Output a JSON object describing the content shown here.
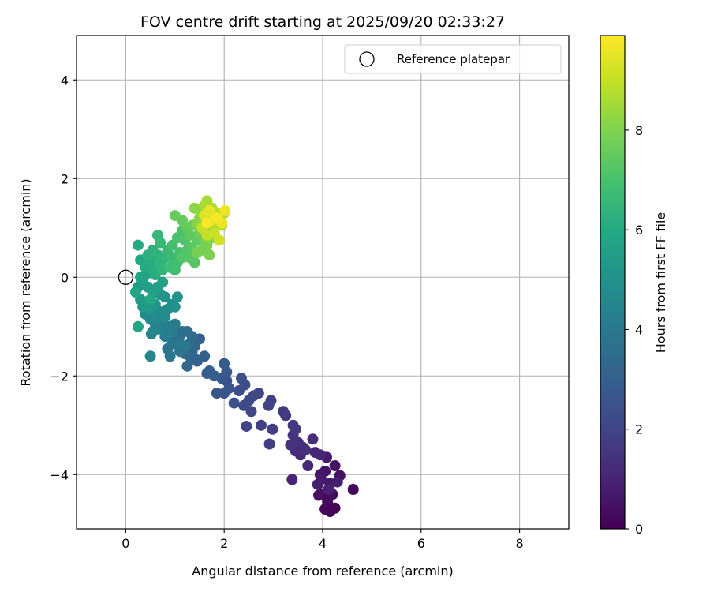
{
  "chart_data": {
    "type": "scatter",
    "title": "FOV centre drift starting at 2025/09/20 02:33:27",
    "xlabel": "Angular distance from reference (arcmin)",
    "ylabel": "Rotation from reference (arcmin)",
    "xlim": [
      -1,
      9
    ],
    "ylim": [
      -5.1,
      4.9
    ],
    "xticks": [
      0,
      2,
      4,
      6,
      8
    ],
    "xtick_labels": [
      "0",
      "2",
      "4",
      "6",
      "8"
    ],
    "yticks": [
      -4,
      -2,
      0,
      2,
      4
    ],
    "ytick_labels": [
      "−4",
      "−2",
      "0",
      "2",
      "4"
    ],
    "grid": true,
    "legend": {
      "position": "top-right",
      "entries": [
        {
          "label": "Reference platepar",
          "marker": "open-circle"
        }
      ]
    },
    "reference_point": {
      "x": 0,
      "y": 0
    },
    "colorbar": {
      "label": "Hours from first FF file",
      "range": [
        0,
        9.9
      ],
      "ticks": [
        0,
        2,
        4,
        6,
        8
      ],
      "tick_labels": [
        "0",
        "2",
        "4",
        "6",
        "8"
      ],
      "colormap": "viridis"
    },
    "points": [
      [
        4.15,
        -4.75,
        0.05
      ],
      [
        4.25,
        -4.68,
        0.1
      ],
      [
        4.05,
        -4.7,
        0.15
      ],
      [
        4.62,
        -4.3,
        0.2
      ],
      [
        4.1,
        -4.55,
        0.25
      ],
      [
        4.0,
        -4.4,
        0.3
      ],
      [
        4.2,
        -4.4,
        0.35
      ],
      [
        3.92,
        -4.42,
        0.4
      ],
      [
        4.35,
        -4.02,
        0.45
      ],
      [
        4.25,
        -3.82,
        0.5
      ],
      [
        4.05,
        -3.93,
        0.55
      ],
      [
        3.95,
        -4.0,
        0.6
      ],
      [
        4.15,
        -4.18,
        0.65
      ],
      [
        3.97,
        -4.1,
        0.7
      ],
      [
        4.08,
        -3.65,
        0.75
      ],
      [
        3.9,
        -4.2,
        0.8
      ],
      [
        4.3,
        -4.15,
        0.85
      ],
      [
        4.12,
        -4.3,
        0.9
      ],
      [
        3.38,
        -4.1,
        0.95
      ],
      [
        3.85,
        -3.55,
        1.0
      ],
      [
        3.7,
        -3.82,
        1.05
      ],
      [
        3.95,
        -3.6,
        1.1
      ],
      [
        3.55,
        -3.6,
        1.15
      ],
      [
        3.6,
        -3.45,
        1.2
      ],
      [
        3.45,
        -3.52,
        1.25
      ],
      [
        3.8,
        -3.28,
        1.3
      ],
      [
        3.5,
        -3.35,
        1.35
      ],
      [
        3.65,
        -3.5,
        1.4
      ],
      [
        3.35,
        -3.4,
        1.45
      ],
      [
        3.4,
        -3.2,
        1.5
      ],
      [
        3.45,
        -3.08,
        1.55
      ],
      [
        3.4,
        -3.0,
        1.6
      ],
      [
        3.25,
        -2.8,
        1.65
      ],
      [
        3.2,
        -2.72,
        1.7
      ],
      [
        2.98,
        -3.08,
        1.75
      ],
      [
        2.92,
        -3.38,
        1.8
      ],
      [
        2.75,
        -3.0,
        1.85
      ],
      [
        2.95,
        -2.5,
        1.9
      ],
      [
        2.9,
        -2.6,
        1.95
      ],
      [
        2.45,
        -3.02,
        2.0
      ],
      [
        2.55,
        -2.72,
        2.05
      ],
      [
        2.7,
        -2.35,
        2.1
      ],
      [
        2.6,
        -2.4,
        2.15
      ],
      [
        2.5,
        -2.5,
        2.2
      ],
      [
        2.4,
        -2.6,
        2.25
      ],
      [
        2.3,
        -2.3,
        2.3
      ],
      [
        2.42,
        -2.18,
        2.35
      ],
      [
        2.35,
        -2.05,
        2.4
      ],
      [
        2.2,
        -2.55,
        2.45
      ],
      [
        2.1,
        -2.25,
        2.5
      ],
      [
        2.05,
        -2.1,
        2.55
      ],
      [
        2.0,
        -2.35,
        2.6
      ],
      [
        1.85,
        -2.35,
        2.65
      ],
      [
        1.95,
        -2.05,
        2.7
      ],
      [
        2.05,
        -1.92,
        2.75
      ],
      [
        2.0,
        -1.75,
        2.8
      ],
      [
        1.8,
        -2.0,
        2.85
      ],
      [
        1.7,
        -1.9,
        2.9
      ],
      [
        1.65,
        -1.95,
        2.95
      ],
      [
        1.6,
        -1.6,
        3.0
      ],
      [
        1.5,
        -1.25,
        3.05
      ],
      [
        1.45,
        -1.7,
        3.1
      ],
      [
        1.4,
        -1.65,
        3.15
      ],
      [
        1.35,
        -1.5,
        3.2
      ],
      [
        1.4,
        -1.4,
        3.25
      ],
      [
        1.3,
        -1.6,
        3.3
      ],
      [
        1.25,
        -1.8,
        3.35
      ],
      [
        1.2,
        -1.55,
        3.4
      ],
      [
        1.3,
        -1.35,
        3.45
      ],
      [
        1.35,
        -1.2,
        3.5
      ],
      [
        1.25,
        -1.1,
        3.55
      ],
      [
        1.15,
        -1.1,
        3.6
      ],
      [
        1.1,
        -1.2,
        3.65
      ],
      [
        1.0,
        -1.28,
        3.7
      ],
      [
        0.95,
        -1.35,
        3.75
      ],
      [
        0.85,
        -1.45,
        3.8
      ],
      [
        0.9,
        -1.6,
        3.85
      ],
      [
        1.1,
        -1.5,
        3.9
      ],
      [
        1.2,
        -1.4,
        3.95
      ],
      [
        1.1,
        -1.35,
        4.0
      ],
      [
        0.95,
        -1.1,
        4.05
      ],
      [
        1.0,
        -0.95,
        4.1
      ],
      [
        0.85,
        -1.0,
        4.15
      ],
      [
        0.8,
        -1.2,
        4.2
      ],
      [
        0.75,
        -1.0,
        4.25
      ],
      [
        0.7,
        -0.9,
        4.3
      ],
      [
        0.65,
        -1.05,
        4.35
      ],
      [
        0.6,
        -0.95,
        4.4
      ],
      [
        0.55,
        -1.1,
        4.45
      ],
      [
        0.5,
        -1.6,
        4.5
      ],
      [
        0.52,
        -1.15,
        4.55
      ],
      [
        0.4,
        -0.75,
        4.6
      ],
      [
        0.5,
        -0.85,
        4.65
      ],
      [
        0.6,
        -0.8,
        4.7
      ],
      [
        0.7,
        -0.7,
        4.75
      ],
      [
        0.8,
        -0.8,
        4.8
      ],
      [
        0.85,
        -0.65,
        4.85
      ],
      [
        0.95,
        -0.55,
        4.9
      ],
      [
        1.0,
        -0.6,
        4.95
      ],
      [
        1.05,
        -0.4,
        5.0
      ],
      [
        0.8,
        -0.4,
        5.05
      ],
      [
        0.7,
        -0.35,
        5.1
      ],
      [
        0.6,
        -0.55,
        5.15
      ],
      [
        0.5,
        -0.65,
        5.2
      ],
      [
        0.4,
        -0.5,
        5.25
      ],
      [
        0.35,
        -0.6,
        5.3
      ],
      [
        0.3,
        -0.45,
        5.35
      ],
      [
        0.25,
        -0.2,
        5.4
      ],
      [
        0.35,
        -0.1,
        5.45
      ],
      [
        0.45,
        -0.2,
        5.5
      ],
      [
        0.55,
        -0.3,
        5.55
      ],
      [
        0.65,
        -0.2,
        5.6
      ],
      [
        0.75,
        -0.1,
        5.65
      ],
      [
        0.4,
        0.05,
        5.7
      ],
      [
        0.3,
        0.0,
        5.75
      ],
      [
        0.2,
        -0.3,
        5.8
      ],
      [
        0.25,
        -1.0,
        5.85
      ],
      [
        0.5,
        -0.45,
        5.9
      ],
      [
        0.3,
        0.35,
        5.95
      ],
      [
        0.25,
        0.65,
        6.0
      ],
      [
        0.4,
        0.2,
        6.05
      ],
      [
        0.5,
        0.3,
        6.1
      ],
      [
        0.55,
        0.15,
        6.15
      ],
      [
        0.6,
        0.05,
        6.2
      ],
      [
        0.45,
        0.45,
        6.25
      ],
      [
        0.55,
        0.55,
        6.3
      ],
      [
        0.65,
        0.45,
        6.35
      ],
      [
        0.7,
        0.3,
        6.4
      ],
      [
        0.75,
        0.15,
        6.45
      ],
      [
        0.8,
        0.4,
        6.5
      ],
      [
        0.65,
        0.85,
        6.55
      ],
      [
        0.7,
        0.7,
        6.6
      ],
      [
        0.85,
        0.55,
        6.65
      ],
      [
        0.95,
        0.4,
        6.7
      ],
      [
        0.9,
        0.2,
        6.75
      ],
      [
        1.0,
        0.15,
        6.8
      ],
      [
        1.05,
        0.3,
        6.85
      ],
      [
        1.1,
        0.5,
        6.9
      ],
      [
        0.95,
        0.65,
        6.95
      ],
      [
        1.05,
        0.8,
        7.0
      ],
      [
        1.15,
        0.95,
        7.05
      ],
      [
        1.2,
        0.75,
        7.1
      ],
      [
        1.25,
        0.55,
        7.15
      ],
      [
        1.15,
        0.4,
        7.2
      ],
      [
        1.3,
        0.4,
        7.25
      ],
      [
        1.4,
        0.3,
        7.3
      ],
      [
        1.35,
        0.6,
        7.35
      ],
      [
        1.45,
        0.75,
        7.4
      ],
      [
        1.3,
        0.85,
        7.45
      ],
      [
        1.25,
        1.0,
        7.5
      ],
      [
        1.15,
        1.15,
        7.55
      ],
      [
        1.0,
        1.25,
        7.6
      ],
      [
        1.35,
        1.05,
        7.65
      ],
      [
        1.5,
        0.9,
        7.7
      ],
      [
        1.6,
        0.75,
        7.75
      ],
      [
        1.55,
        0.55,
        7.8
      ],
      [
        1.45,
        0.5,
        7.85
      ],
      [
        1.65,
        0.65,
        7.9
      ],
      [
        1.7,
        0.45,
        7.95
      ],
      [
        1.75,
        0.8,
        8.0
      ],
      [
        1.6,
        0.95,
        8.05
      ],
      [
        1.45,
        1.1,
        8.1
      ],
      [
        1.5,
        1.2,
        8.15
      ],
      [
        1.4,
        1.4,
        8.2
      ],
      [
        1.55,
        1.3,
        8.25
      ],
      [
        1.65,
        1.15,
        8.3
      ],
      [
        1.75,
        1.0,
        8.35
      ],
      [
        1.8,
        0.85,
        8.4
      ],
      [
        1.85,
        1.1,
        8.45
      ],
      [
        1.7,
        1.3,
        8.5
      ],
      [
        1.6,
        1.45,
        8.55
      ],
      [
        1.65,
        1.55,
        8.6
      ],
      [
        1.75,
        1.4,
        8.65
      ],
      [
        1.9,
        1.25,
        8.7
      ],
      [
        1.95,
        1.05,
        8.75
      ],
      [
        2.0,
        1.3,
        8.8
      ],
      [
        1.85,
        1.3,
        8.85
      ],
      [
        1.7,
        1.2,
        8.9
      ],
      [
        1.55,
        1.0,
        8.95
      ],
      [
        1.65,
        0.85,
        9.0
      ],
      [
        1.8,
        0.9,
        9.1
      ],
      [
        1.9,
        0.75,
        9.2
      ],
      [
        1.75,
        1.15,
        9.3
      ],
      [
        1.6,
        1.25,
        9.4
      ],
      [
        1.7,
        1.35,
        9.5
      ],
      [
        1.95,
        1.1,
        9.6
      ],
      [
        2.02,
        1.35,
        9.7
      ],
      [
        1.85,
        1.2,
        9.8
      ],
      [
        1.65,
        1.1,
        9.85
      ]
    ]
  }
}
